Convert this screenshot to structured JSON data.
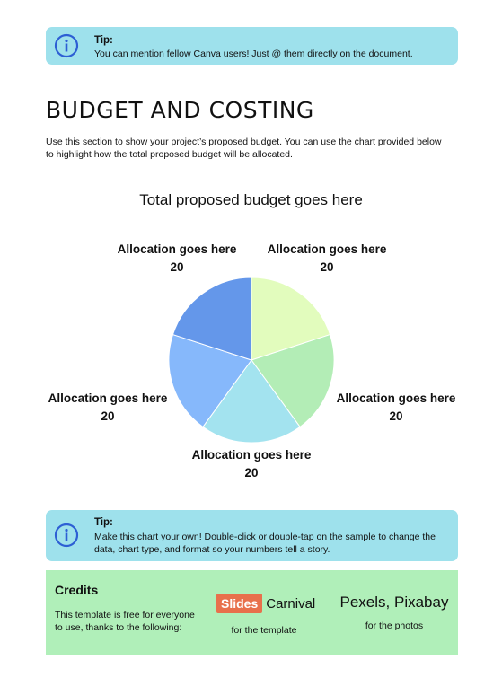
{
  "tip_top": {
    "title": "Tip:",
    "text": "You can mention fellow Canva users! Just @ them directly on the document."
  },
  "heading": "BUDGET AND COSTING",
  "intro": "Use this section to show your project’s proposed budget. You can use the chart provided below to highlight how the total proposed budget will be allocated.",
  "chart_data": {
    "type": "pie",
    "title": "Total proposed budget goes here",
    "labels": [
      "Allocation goes here",
      "Allocation goes here",
      "Allocation goes here",
      "Allocation goes here",
      "Allocation goes here"
    ],
    "values": [
      20,
      20,
      20,
      20,
      20
    ],
    "colors": [
      "#e2fcbd",
      "#b3edb6",
      "#a3e3ef",
      "#86b8fb",
      "#6497ea"
    ]
  },
  "tip_bottom": {
    "title": "Tip:",
    "text": "Make this chart your own! Double-click or double-tap on the sample to change the data, chart type, and format so your numbers tell a story."
  },
  "credits": {
    "title": "Credits",
    "text": "This template is free for everyone to use, thanks to the following:",
    "slides_word": "Slides",
    "carnival_word": "Carnival",
    "slidescarnival_caption": "for the template",
    "photos_source": "Pexels, Pixabay",
    "photos_caption": "for the photos"
  },
  "icons": {
    "tip": "info-icon"
  }
}
